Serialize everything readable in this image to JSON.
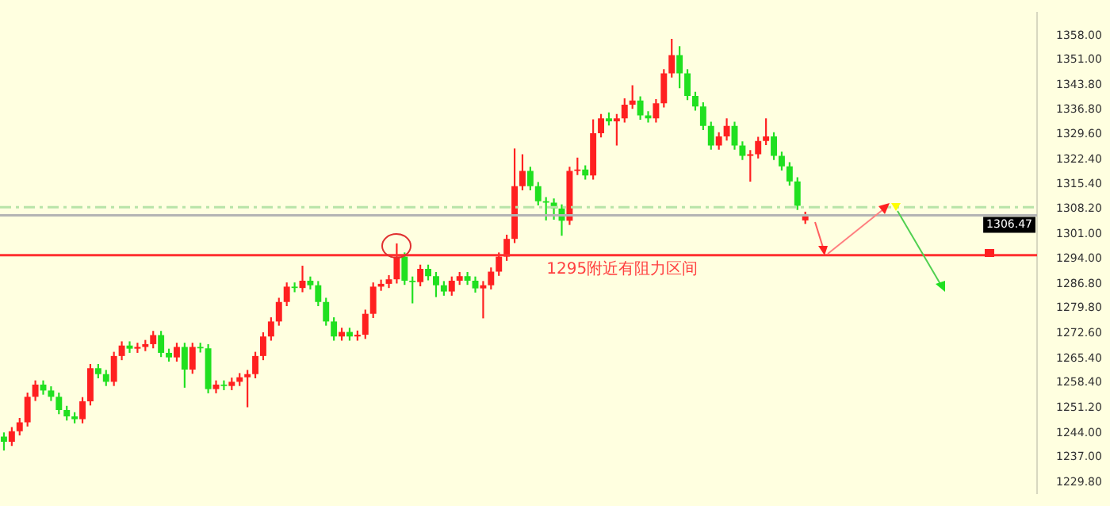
{
  "chart_data": {
    "type": "candlestick",
    "categories": [
      null,
      null,
      null,
      null,
      null,
      null,
      null,
      null,
      null,
      null,
      null,
      null,
      null,
      null,
      null,
      null,
      null,
      null,
      null,
      null,
      null,
      null,
      null,
      null,
      null,
      null,
      null,
      null,
      null,
      null,
      null,
      null,
      null,
      null,
      null,
      null,
      null,
      null,
      null,
      null,
      null,
      null,
      null,
      null,
      null,
      null,
      null,
      null,
      null,
      null,
      null,
      null,
      null,
      null,
      null,
      null,
      null,
      null,
      null,
      null,
      null,
      null,
      null,
      null,
      null,
      null,
      null,
      null,
      null,
      null,
      null,
      null,
      null,
      null,
      null,
      null,
      null,
      null,
      null,
      null,
      null,
      null,
      null,
      null,
      null,
      null,
      null,
      null,
      null,
      null,
      null,
      null,
      null,
      null,
      null,
      null,
      null,
      null,
      null,
      null,
      null,
      null,
      null,
      null,
      null,
      null,
      null,
      null,
      null,
      null,
      null,
      null,
      null,
      null,
      null,
      null,
      null,
      null,
      null,
      null,
      null,
      null,
      null,
      null,
      null,
      null,
      null,
      null,
      null,
      null,
      null,
      null
    ],
    "ohlc": [
      [
        1243.0,
        1244.2,
        1239.0,
        1241.5
      ],
      [
        1241.5,
        1245.7,
        1240.3,
        1244.5
      ],
      [
        1244.5,
        1248.3,
        1243.3,
        1247.1
      ],
      [
        1247.1,
        1255.6,
        1245.9,
        1254.4
      ],
      [
        1254.4,
        1259.1,
        1253.2,
        1257.9
      ],
      [
        1257.9,
        1259.1,
        1255.0,
        1256.2
      ],
      [
        1256.2,
        1257.4,
        1253.2,
        1254.4
      ],
      [
        1254.4,
        1255.6,
        1249.4,
        1250.6
      ],
      [
        1250.6,
        1251.8,
        1247.6,
        1248.8
      ],
      [
        1248.8,
        1250.0,
        1246.8,
        1248.0
      ],
      [
        1248.0,
        1254.3,
        1246.8,
        1253.1
      ],
      [
        1253.1,
        1263.8,
        1251.9,
        1262.6
      ],
      [
        1262.6,
        1263.8,
        1259.7,
        1260.9
      ],
      [
        1260.9,
        1262.1,
        1257.5,
        1258.7
      ],
      [
        1258.7,
        1267.3,
        1257.5,
        1266.1
      ],
      [
        1266.1,
        1270.3,
        1264.9,
        1269.1
      ],
      [
        1269.1,
        1270.3,
        1267.0,
        1268.2
      ],
      [
        1268.2,
        1269.9,
        1267.0,
        1268.7
      ],
      [
        1268.7,
        1270.7,
        1267.5,
        1269.5
      ],
      [
        1269.5,
        1273.3,
        1268.3,
        1272.1
      ],
      [
        1272.1,
        1273.3,
        1265.8,
        1267.0
      ],
      [
        1267.0,
        1268.2,
        1264.5,
        1265.7
      ],
      [
        1265.7,
        1269.9,
        1264.5,
        1268.7
      ],
      [
        1268.7,
        1269.9,
        1257.0,
        1262.2
      ],
      [
        1262.2,
        1269.9,
        1261.0,
        1268.7
      ],
      [
        1268.7,
        1269.9,
        1267.1,
        1268.3
      ],
      [
        1268.3,
        1269.5,
        1255.4,
        1256.6
      ],
      [
        1256.6,
        1259.1,
        1255.4,
        1257.9
      ],
      [
        1257.9,
        1259.1,
        1256.3,
        1257.5
      ],
      [
        1257.5,
        1259.9,
        1256.3,
        1258.7
      ],
      [
        1258.7,
        1261.2,
        1257.5,
        1260.0
      ],
      [
        1260.0,
        1262.1,
        1251.4,
        1260.9
      ],
      [
        1260.9,
        1267.3,
        1259.7,
        1266.1
      ],
      [
        1266.1,
        1272.9,
        1264.9,
        1271.7
      ],
      [
        1271.7,
        1277.2,
        1270.5,
        1276.0
      ],
      [
        1276.0,
        1282.8,
        1274.8,
        1281.6
      ],
      [
        1281.6,
        1287.2,
        1280.4,
        1286.0
      ],
      [
        1286.0,
        1287.2,
        1284.4,
        1285.6
      ],
      [
        1285.6,
        1292.0,
        1284.4,
        1287.7
      ],
      [
        1287.7,
        1288.9,
        1285.2,
        1286.4
      ],
      [
        1286.4,
        1287.6,
        1280.4,
        1281.6
      ],
      [
        1281.6,
        1282.8,
        1274.8,
        1276.0
      ],
      [
        1276.0,
        1277.2,
        1270.5,
        1271.7
      ],
      [
        1271.7,
        1274.2,
        1270.5,
        1273.0
      ],
      [
        1273.0,
        1274.2,
        1270.5,
        1271.7
      ],
      [
        1271.7,
        1273.4,
        1270.5,
        1272.2
      ],
      [
        1272.2,
        1279.4,
        1271.0,
        1278.2
      ],
      [
        1278.2,
        1287.2,
        1277.0,
        1286.0
      ],
      [
        1286.0,
        1288.0,
        1284.8,
        1286.8
      ],
      [
        1286.8,
        1289.3,
        1285.6,
        1288.1
      ],
      [
        1288.1,
        1298.4,
        1286.9,
        1294.6
      ],
      [
        1294.6,
        1295.8,
        1286.5,
        1287.7
      ],
      [
        1287.7,
        1288.9,
        1281.2,
        1287.3
      ],
      [
        1287.3,
        1292.3,
        1286.1,
        1291.1
      ],
      [
        1291.1,
        1292.3,
        1287.8,
        1289.0
      ],
      [
        1289.0,
        1290.2,
        1283.0,
        1286.4
      ],
      [
        1286.4,
        1287.6,
        1283.4,
        1284.6
      ],
      [
        1284.6,
        1288.9,
        1283.4,
        1287.7
      ],
      [
        1287.7,
        1290.2,
        1286.5,
        1289.0
      ],
      [
        1289.0,
        1290.2,
        1286.5,
        1287.7
      ],
      [
        1287.7,
        1288.9,
        1284.3,
        1285.5
      ],
      [
        1285.5,
        1287.6,
        1276.9,
        1286.4
      ],
      [
        1286.4,
        1291.5,
        1285.2,
        1290.3
      ],
      [
        1290.3,
        1295.8,
        1289.1,
        1294.6
      ],
      [
        1294.6,
        1300.9,
        1293.4,
        1299.7
      ],
      [
        1299.7,
        1325.6,
        1298.5,
        1314.8
      ],
      [
        1314.8,
        1324.0,
        1313.6,
        1319.2
      ],
      [
        1319.2,
        1320.4,
        1313.6,
        1314.8
      ],
      [
        1314.8,
        1316.0,
        1309.3,
        1310.5
      ],
      [
        1310.5,
        1311.7,
        1305.0,
        1310.1
      ],
      [
        1310.1,
        1311.3,
        1305.2,
        1308.4
      ],
      [
        1308.4,
        1309.6,
        1300.6,
        1304.9
      ],
      [
        1304.9,
        1320.4,
        1303.7,
        1319.2
      ],
      [
        1319.2,
        1323.0,
        1318.0,
        1319.6
      ],
      [
        1319.6,
        1320.8,
        1316.7,
        1317.9
      ],
      [
        1317.9,
        1334.0,
        1316.7,
        1330.0
      ],
      [
        1330.0,
        1335.5,
        1328.8,
        1334.3
      ],
      [
        1334.3,
        1336.0,
        1332.2,
        1333.4
      ],
      [
        1333.4,
        1335.5,
        1326.5,
        1334.3
      ],
      [
        1334.3,
        1340.0,
        1333.1,
        1338.2
      ],
      [
        1338.2,
        1343.8,
        1337.0,
        1339.4
      ],
      [
        1339.4,
        1340.6,
        1333.9,
        1335.1
      ],
      [
        1335.1,
        1336.3,
        1333.1,
        1334.3
      ],
      [
        1334.3,
        1339.8,
        1333.1,
        1338.6
      ],
      [
        1338.6,
        1348.4,
        1337.4,
        1347.2
      ],
      [
        1347.2,
        1357.1,
        1346.0,
        1352.4
      ],
      [
        1352.4,
        1355.0,
        1342.9,
        1347.2
      ],
      [
        1347.2,
        1348.4,
        1339.5,
        1340.7
      ],
      [
        1340.7,
        1341.9,
        1336.5,
        1337.7
      ],
      [
        1337.7,
        1338.9,
        1330.9,
        1332.1
      ],
      [
        1332.1,
        1333.3,
        1325.3,
        1326.5
      ],
      [
        1326.5,
        1330.3,
        1325.3,
        1329.1
      ],
      [
        1329.1,
        1334.3,
        1327.9,
        1332.1
      ],
      [
        1332.1,
        1333.3,
        1325.3,
        1326.5
      ],
      [
        1326.5,
        1327.7,
        1322.3,
        1323.5
      ],
      [
        1323.5,
        1325.2,
        1316.1,
        1324.0
      ],
      [
        1324.0,
        1329.0,
        1322.8,
        1327.8
      ],
      [
        1327.8,
        1334.3,
        1326.6,
        1329.1
      ],
      [
        1329.1,
        1330.3,
        1322.3,
        1323.5
      ],
      [
        1323.5,
        1324.7,
        1319.3,
        1320.5
      ],
      [
        1320.5,
        1321.7,
        1315.0,
        1316.2
      ],
      [
        1316.2,
        1317.4,
        1308.0,
        1309.2
      ],
      [
        1305.0,
        1307.5,
        1304.0,
        1306.47
      ],
      null,
      null,
      null,
      null,
      null,
      null,
      null,
      null,
      null,
      null,
      null,
      null,
      null,
      null,
      null,
      null,
      null,
      null,
      null,
      null,
      null,
      null,
      null,
      null,
      null,
      null,
      null,
      null,
      null
    ],
    "colors": [
      "#20e020",
      "#ff2020",
      "#ff2020",
      "#ff2020",
      "#ff2020",
      "#20e020",
      "#20e020",
      "#20e020",
      "#20e020",
      "#20e020",
      "#ff2020",
      "#ff2020",
      "#20e020",
      "#20e020",
      "#ff2020",
      "#ff2020",
      "#20e020",
      "#ff2020",
      "#ff2020",
      "#ff2020",
      "#20e020",
      "#20e020",
      "#ff2020",
      "#20e020",
      "#ff2020",
      "#20e020",
      "#20e020",
      "#ff2020",
      "#20e020",
      "#ff2020",
      "#ff2020",
      "#ff2020",
      "#ff2020",
      "#ff2020",
      "#ff2020",
      "#ff2020",
      "#ff2020",
      "#20e020",
      "#ff2020",
      "#20e020",
      "#20e020",
      "#20e020",
      "#20e020",
      "#ff2020",
      "#20e020",
      "#ff2020",
      "#ff2020",
      "#ff2020",
      "#ff2020",
      "#ff2020",
      "#ff2020",
      "#20e020",
      "#20e020",
      "#ff2020",
      "#20e020",
      "#20e020",
      "#20e020",
      "#ff2020",
      "#ff2020",
      "#20e020",
      "#20e020",
      "#ff2020",
      "#ff2020",
      "#ff2020",
      "#ff2020",
      "#ff2020",
      "#ff2020",
      "#20e020",
      "#20e020",
      "#20e020",
      "#20e020",
      "#20e020",
      "#ff2020",
      "#ff2020",
      "#20e020",
      "#ff2020",
      "#ff2020",
      "#20e020",
      "#ff2020",
      "#ff2020",
      "#ff2020",
      "#20e020",
      "#20e020",
      "#ff2020",
      "#ff2020",
      "#ff2020",
      "#20e020",
      "#20e020",
      "#20e020",
      "#20e020",
      "#20e020",
      "#ff2020",
      "#ff2020",
      "#20e020",
      "#20e020",
      "#ff2020",
      "#ff2020",
      "#ff2020",
      "#20e020",
      "#20e020",
      "#20e020",
      "#20e020",
      "#ff2020",
      null,
      null,
      null,
      null,
      null,
      null,
      null,
      null,
      null,
      null,
      null,
      null,
      null,
      null,
      null,
      null,
      null,
      null,
      null,
      null,
      null,
      null,
      null,
      null,
      null,
      null,
      null,
      null,
      null
    ],
    "ylim": [
      1226.8,
      1364.5
    ],
    "yticks": [
      {
        "value": 1358,
        "label": "1358.00"
      },
      {
        "value": 1351,
        "label": "1351.00"
      },
      {
        "value": 1343.8,
        "label": "1343.80"
      },
      {
        "value": 1336.8,
        "label": "1336.80"
      },
      {
        "value": 1329.6,
        "label": "1329.60"
      },
      {
        "value": 1322.4,
        "label": "1322.40"
      },
      {
        "value": 1315.4,
        "label": "1315.40"
      },
      {
        "value": 1308.2,
        "label": "1308.20"
      },
      {
        "value": 1301,
        "label": "1301.00"
      },
      {
        "value": 1294,
        "label": "1294.00"
      },
      {
        "value": 1286.8,
        "label": "1286.80"
      },
      {
        "value": 1279.8,
        "label": "1279.80"
      },
      {
        "value": 1272.6,
        "label": "1272.60"
      },
      {
        "value": 1265.4,
        "label": "1265.40"
      },
      {
        "value": 1258.4,
        "label": "1258.40"
      },
      {
        "value": 1251.2,
        "label": "1251.20"
      },
      {
        "value": 1244,
        "label": "1244.00"
      },
      {
        "value": 1237,
        "label": "1237.00"
      },
      {
        "value": 1229.8,
        "label": "1229.80"
      }
    ],
    "tick_labels": "y",
    "grid": false,
    "legend": false,
    "ref_lines": [
      {
        "axis": "y",
        "value": 1308.8,
        "color": "#b8e4a8",
        "line_style": "dashed"
      },
      {
        "axis": "y",
        "value": 1306.47,
        "label": "1306.47",
        "color": "#b4b4b4"
      },
      {
        "axis": "y",
        "value": 1295,
        "color": "#ff3030"
      }
    ],
    "annotations": [
      "1295附近有阻力区间"
    ]
  }
}
